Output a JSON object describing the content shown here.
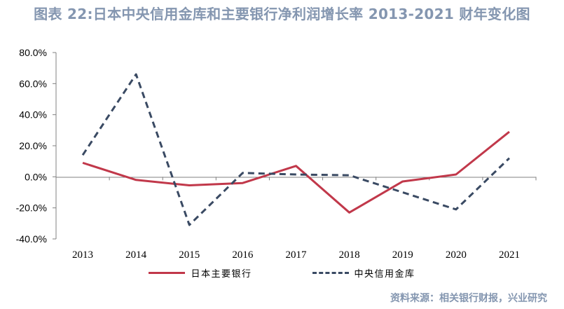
{
  "title": "图表 22:日本中央信用金库和主要银行净利润增长率 2013-2021 财年变化图",
  "source": "资料来源：相关银行财报，兴业研究",
  "colors": {
    "title": "#8496b0",
    "axis": "#808080",
    "series_main_banks": "#c1384a",
    "series_shinkin": "#3a4a63"
  },
  "chart_data": {
    "type": "line",
    "x": [
      "2013",
      "2014",
      "2015",
      "2016",
      "2017",
      "2018",
      "2019",
      "2020",
      "2021"
    ],
    "ylim": [
      -40,
      80
    ],
    "yticks": [
      80,
      60,
      40,
      20,
      0,
      -20,
      -40
    ],
    "ytick_labels": [
      "80.0%",
      "60.0%",
      "40.0%",
      "20.0%",
      "0.0%",
      "-20.0%",
      "-40.0%"
    ],
    "grid": false,
    "legend_position": "bottom",
    "series": [
      {
        "name": "日本主要银行",
        "style": "solid",
        "values": [
          9.0,
          -2.0,
          -5.5,
          -4.0,
          7.0,
          -23.0,
          -3.0,
          1.5,
          29.0
        ]
      },
      {
        "name": "中央信用金库",
        "style": "dashed",
        "values": [
          14.0,
          66.0,
          -31.0,
          2.5,
          1.5,
          1.0,
          -10.0,
          -21.0,
          12.0
        ]
      }
    ]
  }
}
